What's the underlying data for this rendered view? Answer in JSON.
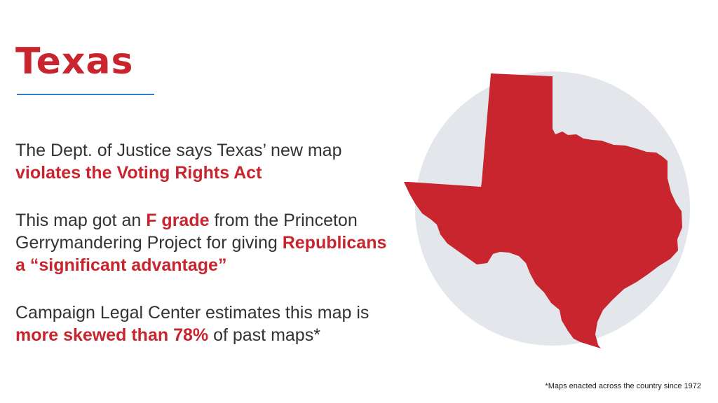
{
  "title": "Texas",
  "paragraphs": [
    {
      "before": "The Dept. of Justice says Texas’ new map ",
      "highlight": "violates the Voting Rights Act",
      "after": ""
    },
    {
      "before": "This map got an ",
      "highlight": "F grade",
      "middle": " from the Princeton Gerrymandering Project for giving ",
      "highlight2": "Republicans a “significant advantage”",
      "after": ""
    },
    {
      "before": "Campaign Legal Center estimates this map is ",
      "highlight": "more skewed than 78%",
      "after": " of past maps*"
    }
  ],
  "footnote": "*Maps enacted across the country since 1972",
  "colors": {
    "accent": "#c8252e",
    "rule": "#2f7ec7",
    "text": "#333333",
    "circle": "#e3e6ea"
  },
  "map": {
    "state": "Texas"
  }
}
